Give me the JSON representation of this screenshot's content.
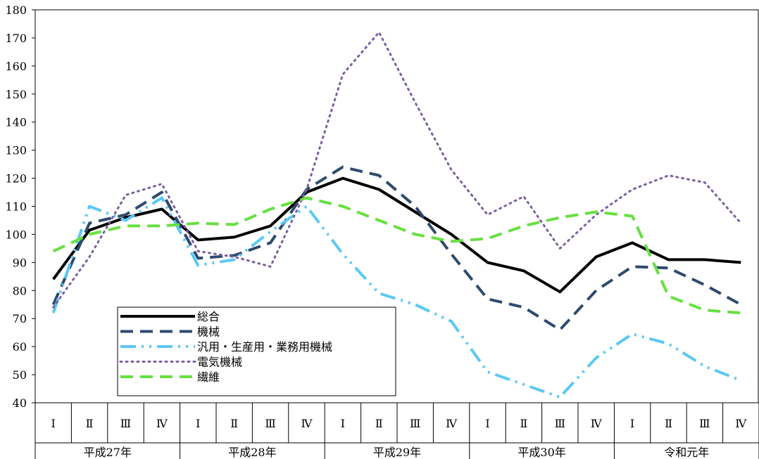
{
  "chart_data": {
    "type": "line",
    "title": "",
    "xlabel": "",
    "ylabel": "",
    "ylim": [
      40,
      180
    ],
    "yticks": [
      40,
      50,
      60,
      70,
      80,
      90,
      100,
      110,
      120,
      130,
      140,
      150,
      160,
      170,
      180
    ],
    "grid": false,
    "legend_placement": "bottom-left",
    "quarters": [
      "Ⅰ",
      "Ⅱ",
      "Ⅲ",
      "Ⅳ",
      "Ⅰ",
      "Ⅱ",
      "Ⅲ",
      "Ⅳ",
      "Ⅰ",
      "Ⅱ",
      "Ⅲ",
      "Ⅳ",
      "Ⅰ",
      "Ⅱ",
      "Ⅲ",
      "Ⅳ",
      "Ⅰ",
      "Ⅱ",
      "Ⅲ",
      "Ⅳ"
    ],
    "years": [
      "平成27年",
      "平成28年",
      "平成29年",
      "平成30年",
      "令和元年"
    ],
    "series": [
      {
        "name": "総合",
        "color": "#000000",
        "style": "solid",
        "values": [
          84,
          101.5,
          106,
          109,
          98,
          99,
          103,
          115,
          120,
          116,
          108,
          100,
          90,
          87,
          79.5,
          92,
          97,
          91,
          91,
          90
        ]
      },
      {
        "name": "機械",
        "color": "#2e4a6e",
        "style": "dash",
        "values": [
          75,
          104,
          107,
          115,
          91.5,
          92.5,
          97,
          116,
          124,
          121,
          110,
          93,
          77,
          74,
          66,
          80,
          88.5,
          88,
          82,
          75
        ]
      },
      {
        "name": "汎用・生産用・業務用機械",
        "color": "#5bc8f5",
        "style": "dashdotdot",
        "values": [
          72,
          110,
          105,
          113,
          89,
          91,
          101,
          110,
          93,
          79,
          75,
          69,
          51,
          46.5,
          42,
          56,
          64.5,
          61,
          53,
          48
        ]
      },
      {
        "name": "電気機械",
        "color": "#7b5fa0",
        "style": "dot",
        "values": [
          74,
          92,
          114,
          118,
          94,
          92,
          88.5,
          116,
          157,
          172,
          147,
          123,
          107,
          113.5,
          95,
          107,
          116,
          121,
          118.5,
          104
        ]
      },
      {
        "name": "繊維",
        "color": "#66e040",
        "style": "dash",
        "values": [
          94,
          100,
          103,
          103,
          104,
          103.5,
          109,
          113,
          110,
          105,
          100,
          97.5,
          98.5,
          103,
          106,
          108,
          106.5,
          78,
          73,
          72
        ]
      }
    ]
  }
}
